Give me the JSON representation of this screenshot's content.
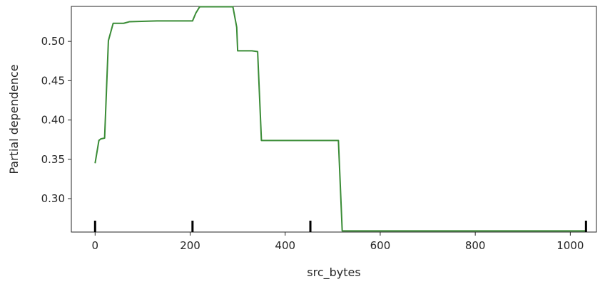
{
  "chart_data": {
    "type": "line",
    "title": "",
    "xlabel": "src_bytes",
    "ylabel": "Partial dependence",
    "xlim": [
      -50,
      1055
    ],
    "ylim": [
      0.2575,
      0.5445
    ],
    "xticks": [
      0,
      200,
      400,
      600,
      800,
      1000
    ],
    "xtick_labels": [
      "0",
      "200",
      "400",
      "600",
      "800",
      "1000"
    ],
    "yticks": [
      0.3,
      0.35,
      0.4,
      0.45,
      0.5
    ],
    "ytick_labels": [
      "0.30",
      "0.35",
      "0.40",
      "0.45",
      "0.50"
    ],
    "grid": false,
    "legend": "none",
    "line_color": "#3a8c36",
    "deciles": [
      0,
      205,
      453,
      1033
    ],
    "series": [
      {
        "x": [
          0,
          8,
          12,
          20,
          28,
          38,
          60,
          72,
          130,
          205,
          212,
          220,
          290,
          298,
          300,
          330,
          342,
          350,
          505,
          512,
          520,
          1033
        ],
        "y": [
          0.345,
          0.374,
          0.376,
          0.377,
          0.501,
          0.523,
          0.523,
          0.525,
          0.526,
          0.526,
          0.536,
          0.544,
          0.544,
          0.518,
          0.488,
          0.488,
          0.487,
          0.374,
          0.374,
          0.374,
          0.259,
          0.259
        ]
      }
    ]
  }
}
